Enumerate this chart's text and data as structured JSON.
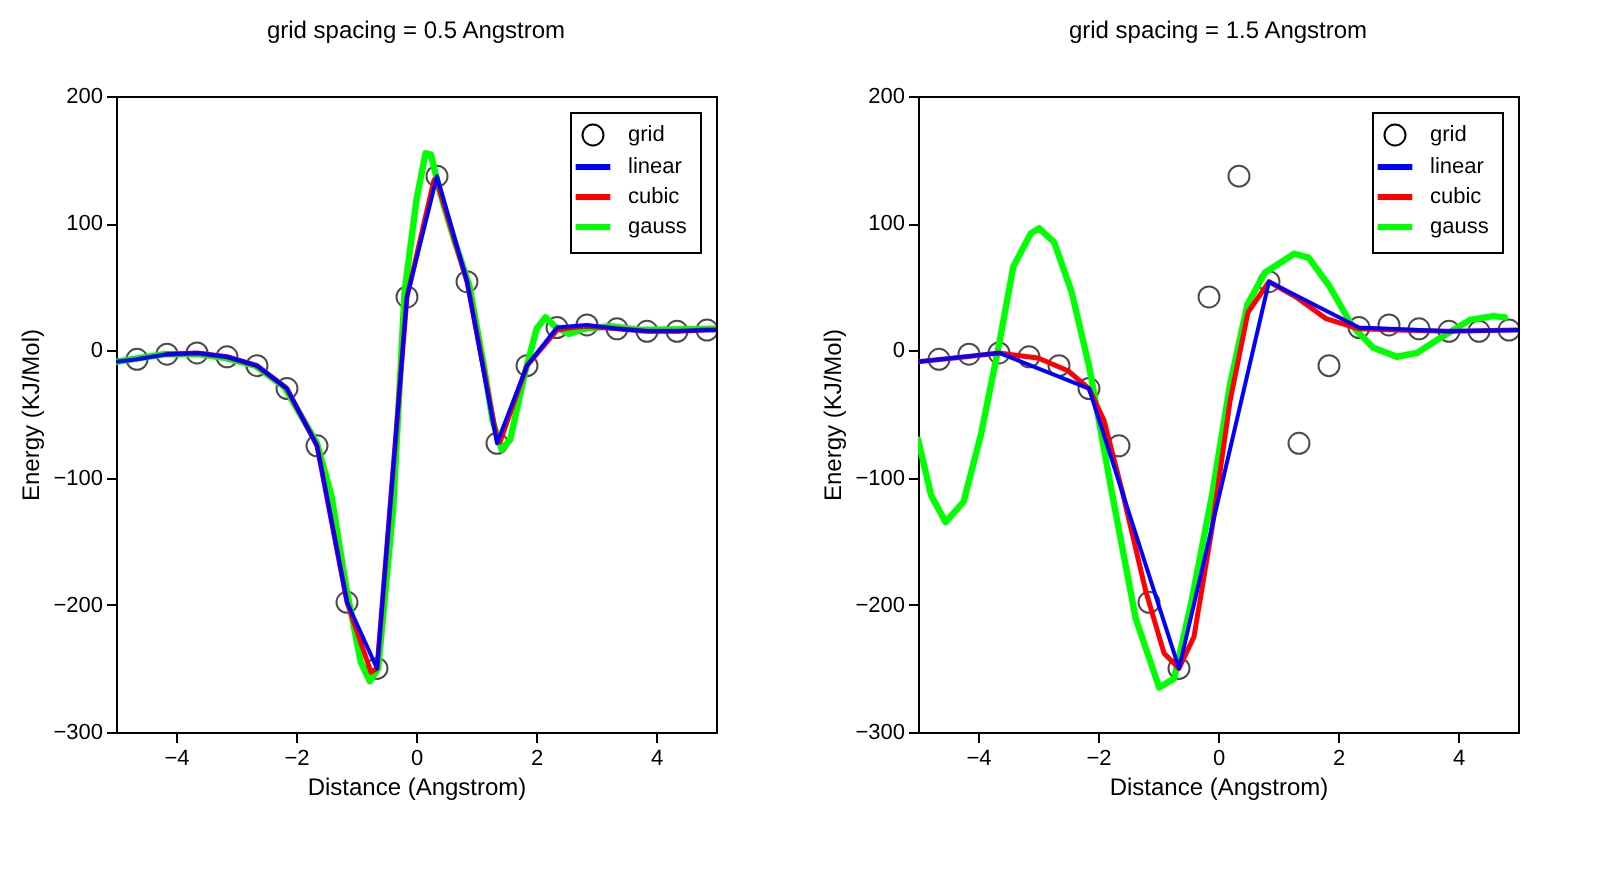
{
  "chart_data": [
    {
      "type": "line",
      "title": "grid spacing = 0.5 Angstrom",
      "xlabel": "Distance (Angstrom)",
      "ylabel": "Energy (KJ/Mol)",
      "xlim": [
        -5,
        5
      ],
      "ylim": [
        -300,
        200
      ],
      "xticks": [
        -4,
        -2,
        0,
        2,
        4
      ],
      "yticks": [
        -300,
        -200,
        -100,
        0,
        100,
        200
      ],
      "grid": false,
      "legend": "top right",
      "series": [
        {
          "name": "grid",
          "type": "scatter",
          "marker": "circle",
          "color": "#000000",
          "x": [
            -4.65,
            -4.15,
            -3.65,
            -3.15,
            -2.65,
            -2.15,
            -1.65,
            -1.15,
            -0.65,
            -0.15,
            0.35,
            0.85,
            1.35,
            1.85,
            2.35,
            2.85,
            3.35,
            3.85,
            4.35,
            4.85
          ],
          "values": [
            -7,
            -3,
            -2,
            -5,
            -12,
            -30,
            -75,
            -198,
            -250,
            42,
            137,
            54,
            -73,
            -12,
            18,
            20,
            17,
            15,
            15,
            16
          ]
        },
        {
          "name": "linear",
          "color": "#0000ff",
          "x": [
            -5,
            -4.65,
            -4.15,
            -3.65,
            -3.15,
            -2.65,
            -2.15,
            -1.65,
            -1.15,
            -0.65,
            -0.15,
            0.35,
            0.85,
            1.35,
            1.85,
            2.35,
            2.85,
            3.35,
            3.85,
            4.35,
            4.85,
            5
          ],
          "values": [
            -9,
            -7,
            -3,
            -2,
            -5,
            -12,
            -30,
            -75,
            -198,
            -250,
            42,
            137,
            54,
            -73,
            -12,
            18,
            20,
            17,
            15,
            15,
            16,
            16
          ]
        },
        {
          "name": "cubic",
          "color": "#ff0000",
          "x": [
            -4.15,
            -3.65,
            -3.15,
            -2.65,
            -2.15,
            -1.65,
            -1.15,
            -0.75,
            -0.65,
            -0.15,
            0.3,
            0.35,
            0.85,
            1.35,
            1.4,
            1.85,
            2.35,
            2.6,
            2.85,
            3.35,
            3.85,
            4.35,
            4.85,
            5
          ],
          "values": [
            -3,
            -2,
            -5,
            -12,
            -30,
            -75,
            -198,
            -253,
            -250,
            42,
            134,
            133,
            54,
            -70,
            -72,
            -12,
            16,
            18,
            19,
            17,
            15,
            15,
            16,
            16
          ]
        },
        {
          "name": "gauss",
          "color": "#00ff00",
          "x": [
            -5,
            -4.2,
            -3.6,
            -3.17,
            -2.68,
            -2.19,
            -1.65,
            -1.41,
            -1.16,
            -0.92,
            -0.77,
            -0.63,
            -0.38,
            -0.19,
            0.01,
            0.16,
            0.25,
            0.4,
            0.65,
            0.89,
            1.13,
            1.28,
            1.43,
            1.57,
            1.82,
            2.01,
            2.16,
            2.31,
            2.55,
            2.8,
            3.24,
            3.73,
            5
          ],
          "values": [
            -9,
            -3,
            -3,
            -6,
            -12,
            -29,
            -73,
            -114,
            -187,
            -245,
            -260,
            -250,
            -124,
            46,
            119,
            155,
            154,
            124,
            85,
            51,
            -12,
            -56,
            -78,
            -70,
            -17,
            17,
            26,
            19,
            13,
            17,
            19,
            16,
            17
          ]
        }
      ]
    },
    {
      "type": "line",
      "title": "grid spacing = 1.5 Angstrom",
      "xlabel": "Distance (Angstrom)",
      "ylabel": "Energy (KJ/Mol)",
      "xlim": [
        -5,
        5
      ],
      "ylim": [
        -300,
        200
      ],
      "xticks": [
        -4,
        -2,
        0,
        2,
        4
      ],
      "yticks": [
        -300,
        -200,
        -100,
        0,
        100,
        200
      ],
      "grid": false,
      "legend": "top right",
      "series": [
        {
          "name": "grid",
          "type": "scatter",
          "marker": "circle",
          "color": "#000000",
          "x": [
            -4.65,
            -4.15,
            -3.65,
            -3.15,
            -2.65,
            -2.15,
            -1.65,
            -1.15,
            -0.65,
            -0.15,
            0.35,
            0.85,
            1.35,
            1.85,
            2.35,
            2.85,
            3.35,
            3.85,
            4.35,
            4.85
          ],
          "values": [
            -7,
            -3,
            -2,
            -5,
            -12,
            -30,
            -75,
            -198,
            -250,
            42,
            137,
            54,
            -73,
            -12,
            18,
            20,
            17,
            15,
            15,
            16
          ]
        },
        {
          "name": "linear",
          "color": "#0000ff",
          "x": [
            -5,
            -3.65,
            -2.15,
            -0.65,
            0.85,
            2.35,
            3.85,
            5
          ],
          "values": [
            -9,
            -2,
            -30,
            -250,
            54,
            18,
            15,
            16
          ]
        },
        {
          "name": "cubic",
          "color": "#ff0000",
          "x": [
            -5,
            -4.2,
            -3.65,
            -3,
            -2.5,
            -2.15,
            -1.9,
            -1.6,
            -1.2,
            -0.9,
            -0.65,
            -0.4,
            -0.1,
            0.2,
            0.5,
            0.85,
            1.3,
            1.8,
            2.35,
            3,
            3.85,
            5
          ],
          "values": [
            -9,
            -5,
            -2,
            -6,
            -16,
            -30,
            -55,
            -110,
            -190,
            -238,
            -250,
            -225,
            -140,
            -40,
            30,
            54,
            42,
            25,
            17,
            16,
            15,
            16
          ]
        },
        {
          "name": "gauss",
          "color": "#00ff00",
          "x": [
            -5,
            -4.78,
            -4.54,
            -4.24,
            -3.95,
            -3.66,
            -3.41,
            -3.12,
            -2.98,
            -2.73,
            -2.44,
            -2.15,
            -1.76,
            -1.37,
            -0.98,
            -0.73,
            -0.44,
            -0.1,
            0.2,
            0.49,
            0.78,
            1.27,
            1.51,
            1.85,
            2.24,
            2.59,
            2.98,
            3.32,
            3.71,
            4.2,
            4.59,
            4.78
          ],
          "values": [
            -70,
            -114,
            -135,
            -119,
            -66,
            2,
            66,
            92,
            96,
            85,
            46,
            -12,
            -114,
            -211,
            -265,
            -258,
            -197,
            -114,
            -27,
            36,
            61,
            76,
            73,
            51,
            19,
            2,
            -5,
            -2,
            10,
            24,
            27,
            26
          ]
        }
      ]
    }
  ]
}
